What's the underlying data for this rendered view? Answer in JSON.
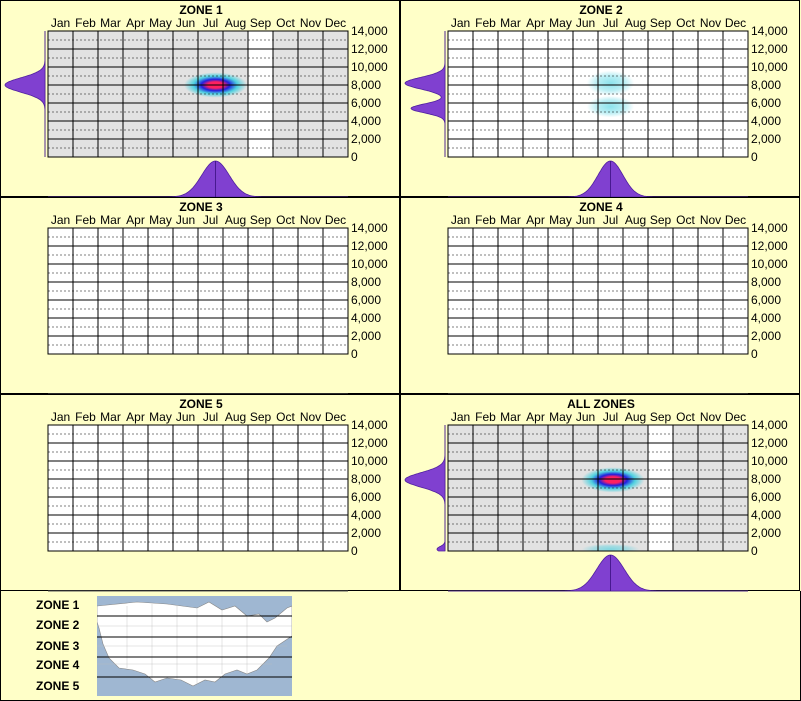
{
  "months": [
    "Jan",
    "Feb",
    "Mar",
    "Apr",
    "May",
    "Jun",
    "Jul",
    "Aug",
    "Sep",
    "Oct",
    "Nov",
    "Dec"
  ],
  "y_ticks": [
    "14,000",
    "12,000",
    "10,000",
    "8,000",
    "6,000",
    "4,000",
    "2,000",
    "0"
  ],
  "colors": {
    "background": "#ffffc8",
    "plot_bg": "#ffffff",
    "shaded_bg": "#e2e2e2",
    "marginal_fill": "#8040d0",
    "heat_cyan": "#40d0e0",
    "heat_blue": "#2020e0",
    "heat_red": "#ff2060"
  },
  "chart_data": [
    {
      "type": "heatmap",
      "title": "ZONE 1",
      "xlabel": "",
      "ylabel": "",
      "x_categories": [
        "Jan",
        "Feb",
        "Mar",
        "Apr",
        "May",
        "Jun",
        "Jul",
        "Aug",
        "Sep",
        "Oct",
        "Nov",
        "Dec"
      ],
      "ylim": [
        0,
        14000
      ],
      "shaded_months": [
        "Jan",
        "Feb",
        "Mar",
        "Apr",
        "May",
        "Jun",
        "Jul",
        "Aug",
        "Oct",
        "Nov",
        "Dec"
      ],
      "hotspots": [
        {
          "month": 7.2,
          "elevation": 8000,
          "intensity": 1.0,
          "spread_month": 0.6,
          "spread_elev": 700
        }
      ],
      "month_density": [
        {
          "month": 7.2,
          "amplitude": 1.0,
          "sd_month": 0.55
        }
      ],
      "elevation_density": [
        {
          "elevation": 8000,
          "amplitude": 1.0,
          "sd_elev": 800
        }
      ]
    },
    {
      "type": "heatmap",
      "title": "ZONE 2",
      "xlabel": "",
      "ylabel": "",
      "x_categories": [
        "Jan",
        "Feb",
        "Mar",
        "Apr",
        "May",
        "Jun",
        "Jul",
        "Aug",
        "Sep",
        "Oct",
        "Nov",
        "Dec"
      ],
      "ylim": [
        0,
        14000
      ],
      "shaded_months": [],
      "hotspots": [
        {
          "month": 7.0,
          "elevation": 8200,
          "intensity": 0.3,
          "spread_month": 0.45,
          "spread_elev": 700
        },
        {
          "month": 7.0,
          "elevation": 5600,
          "intensity": 0.3,
          "spread_month": 0.45,
          "spread_elev": 600
        }
      ],
      "month_density": [
        {
          "month": 7.0,
          "amplitude": 1.0,
          "sd_month": 0.5
        }
      ],
      "elevation_density": [
        {
          "elevation": 8200,
          "amplitude": 1.0,
          "sd_elev": 650
        },
        {
          "elevation": 5400,
          "amplitude": 0.85,
          "sd_elev": 500
        }
      ]
    },
    {
      "type": "heatmap",
      "title": "ZONE 3",
      "xlabel": "",
      "ylabel": "",
      "x_categories": [
        "Jan",
        "Feb",
        "Mar",
        "Apr",
        "May",
        "Jun",
        "Jul",
        "Aug",
        "Sep",
        "Oct",
        "Nov",
        "Dec"
      ],
      "ylim": [
        0,
        14000
      ],
      "shaded_months": [],
      "hotspots": [],
      "month_density": [],
      "elevation_density": []
    },
    {
      "type": "heatmap",
      "title": "ZONE 4",
      "xlabel": "",
      "ylabel": "",
      "x_categories": [
        "Jan",
        "Feb",
        "Mar",
        "Apr",
        "May",
        "Jun",
        "Jul",
        "Aug",
        "Sep",
        "Oct",
        "Nov",
        "Dec"
      ],
      "ylim": [
        0,
        14000
      ],
      "shaded_months": [],
      "hotspots": [],
      "month_density": [],
      "elevation_density": []
    },
    {
      "type": "heatmap",
      "title": "ZONE 5",
      "xlabel": "",
      "ylabel": "",
      "x_categories": [
        "Jan",
        "Feb",
        "Mar",
        "Apr",
        "May",
        "Jun",
        "Jul",
        "Aug",
        "Sep",
        "Oct",
        "Nov",
        "Dec"
      ],
      "ylim": [
        0,
        14000
      ],
      "shaded_months": [],
      "hotspots": [],
      "month_density": [],
      "elevation_density": []
    },
    {
      "type": "heatmap",
      "title": "ALL ZONES",
      "xlabel": "",
      "ylabel": "",
      "x_categories": [
        "Jan",
        "Feb",
        "Mar",
        "Apr",
        "May",
        "Jun",
        "Jul",
        "Aug",
        "Sep",
        "Oct",
        "Nov",
        "Dec"
      ],
      "ylim": [
        0,
        14000
      ],
      "shaded_months": [
        "Jan",
        "Feb",
        "Mar",
        "Apr",
        "May",
        "Jun",
        "Jul",
        "Aug",
        "Oct",
        "Nov",
        "Dec"
      ],
      "hotspots": [
        {
          "month": 7.1,
          "elevation": 7900,
          "intensity": 1.0,
          "spread_month": 0.6,
          "spread_elev": 700
        },
        {
          "month": 7.0,
          "elevation": 200,
          "intensity": 0.35,
          "spread_month": 0.55,
          "spread_elev": 300
        }
      ],
      "month_density": [
        {
          "month": 7.0,
          "amplitude": 1.0,
          "sd_month": 0.55
        }
      ],
      "elevation_density": [
        {
          "elevation": 7900,
          "amplitude": 1.0,
          "sd_elev": 800
        },
        {
          "elevation": 200,
          "amplitude": 0.2,
          "sd_elev": 300
        }
      ]
    }
  ],
  "legend": {
    "zones": [
      "ZONE 1",
      "ZONE 2",
      "ZONE 3",
      "ZONE 4",
      "ZONE 5"
    ],
    "map_icon": "us-zone-map"
  }
}
